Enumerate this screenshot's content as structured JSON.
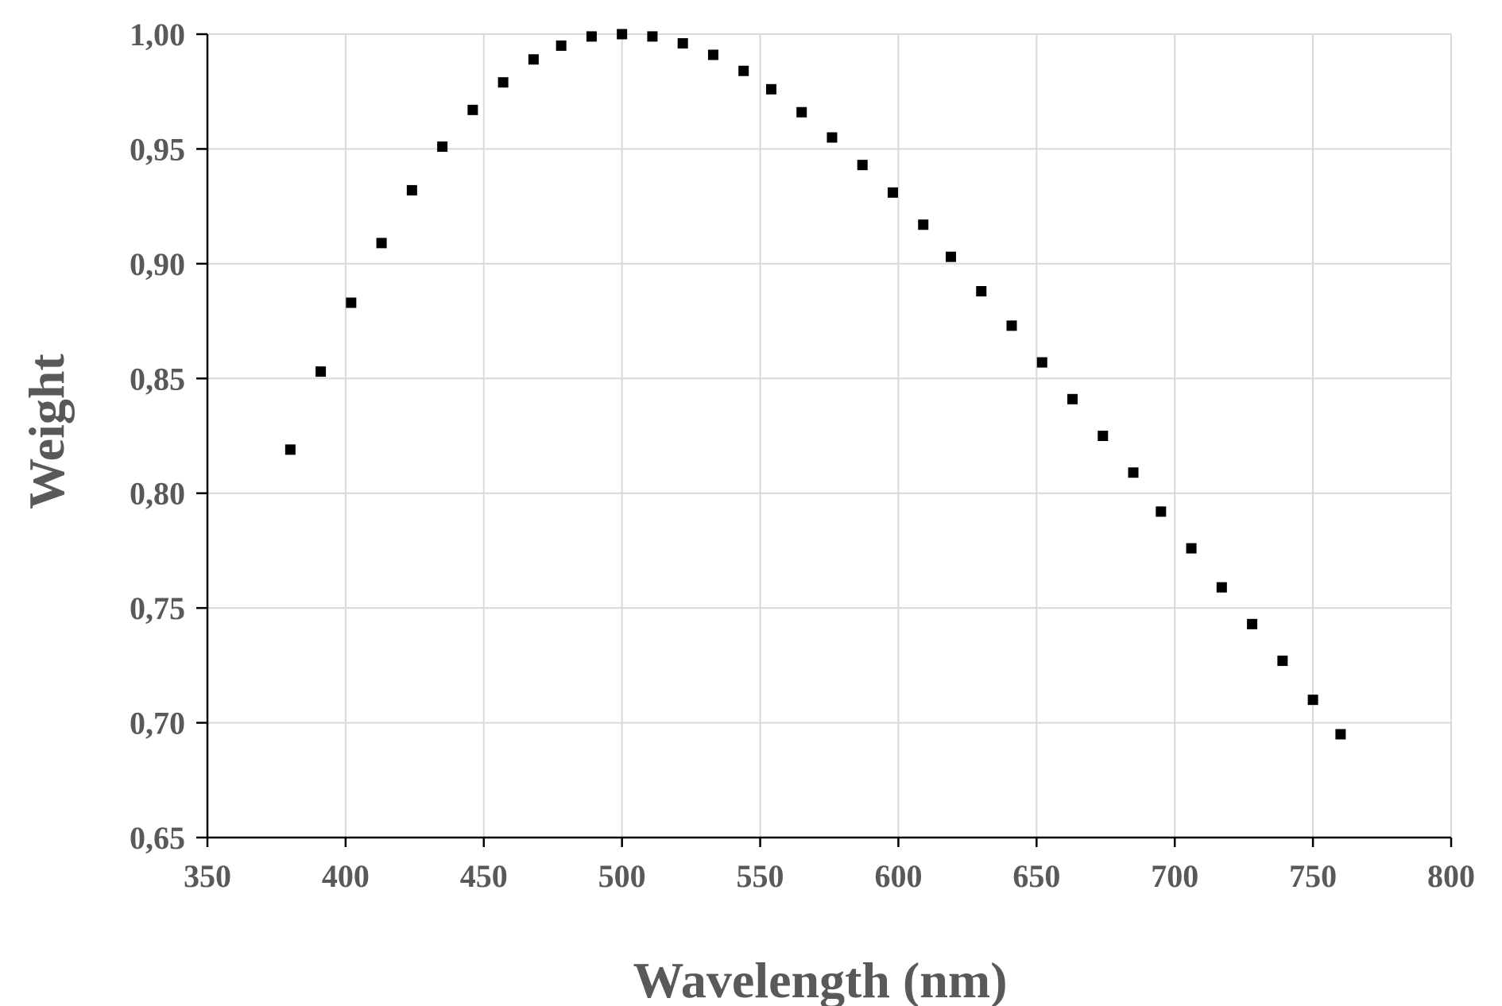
{
  "chart_data": {
    "type": "scatter",
    "title": "",
    "xlabel": "Wavelength (nm)",
    "ylabel": "Weight",
    "xlim": [
      350,
      800
    ],
    "ylim": [
      0.65,
      1.0
    ],
    "x_ticks": [
      350,
      400,
      450,
      500,
      550,
      600,
      650,
      700,
      750,
      800
    ],
    "x_tick_labels": [
      "350",
      "400",
      "450",
      "500",
      "550",
      "600",
      "650",
      "700",
      "750",
      "800"
    ],
    "y_ticks": [
      0.65,
      0.7,
      0.75,
      0.8,
      0.85,
      0.9,
      0.95,
      1.0
    ],
    "y_tick_labels": [
      "0,65",
      "0,70",
      "0,75",
      "0,80",
      "0,85",
      "0,90",
      "0,95",
      "1,00"
    ],
    "grid": true,
    "legend": false,
    "marker": "square",
    "marker_color": "#000000",
    "series": [
      {
        "x": [
          380,
          391,
          402,
          413,
          424,
          435,
          446,
          457,
          468,
          478,
          489,
          500,
          511,
          522,
          533,
          544,
          554,
          565,
          576,
          587,
          598,
          609,
          619,
          630,
          641,
          652,
          663,
          674,
          685,
          695,
          706,
          717,
          728,
          739,
          750,
          760
        ],
        "y": [
          0.819,
          0.853,
          0.883,
          0.909,
          0.932,
          0.951,
          0.967,
          0.979,
          0.989,
          0.995,
          0.999,
          1.0,
          0.999,
          0.996,
          0.991,
          0.984,
          0.976,
          0.966,
          0.955,
          0.943,
          0.931,
          0.917,
          0.903,
          0.888,
          0.873,
          0.857,
          0.841,
          0.825,
          0.809,
          0.792,
          0.776,
          0.759,
          0.743,
          0.727,
          0.71,
          0.695
        ]
      }
    ]
  }
}
